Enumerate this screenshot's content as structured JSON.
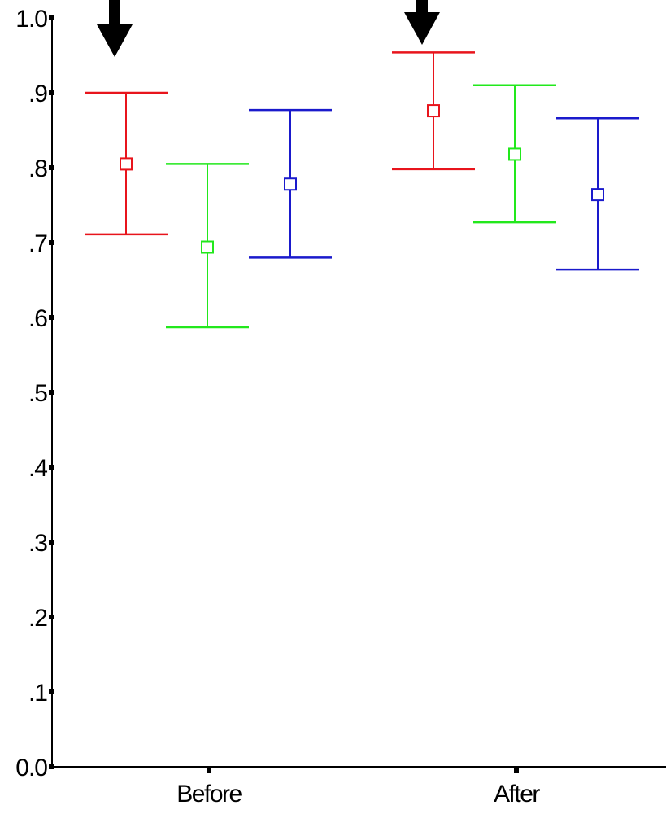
{
  "chart_data": {
    "type": "error_bar",
    "title": "",
    "xlabel": "",
    "ylabel": "",
    "categories": [
      "Before",
      "After"
    ],
    "ylim": [
      0.0,
      1.0
    ],
    "y_ticks": [
      0.0,
      0.1,
      0.2,
      0.3,
      0.4,
      0.5,
      0.6,
      0.7,
      0.8,
      0.9,
      1.0
    ],
    "y_tick_labels": [
      "0.0",
      ".1",
      ".2",
      ".3",
      ".4",
      ".5",
      ".6",
      ".7",
      ".8",
      ".9",
      "1.0"
    ],
    "marker": "open-square",
    "grid": false,
    "series": [
      {
        "color": "#e8141c",
        "values": [
          0.805,
          0.876
        ],
        "lower": [
          0.711,
          0.798
        ],
        "upper": [
          0.9,
          0.954
        ]
      },
      {
        "color": "#22e81c",
        "values": [
          0.694,
          0.818
        ],
        "lower": [
          0.587,
          0.727
        ],
        "upper": [
          0.805,
          0.91
        ]
      },
      {
        "color": "#1a1acc",
        "values": [
          0.778,
          0.764
        ],
        "lower": [
          0.68,
          0.664
        ],
        "upper": [
          0.877,
          0.866
        ]
      }
    ],
    "annotations": [
      {
        "type": "arrow-down",
        "category": "Before",
        "series_index": 0
      },
      {
        "type": "arrow-down",
        "category": "After",
        "series_index": 0
      }
    ]
  }
}
